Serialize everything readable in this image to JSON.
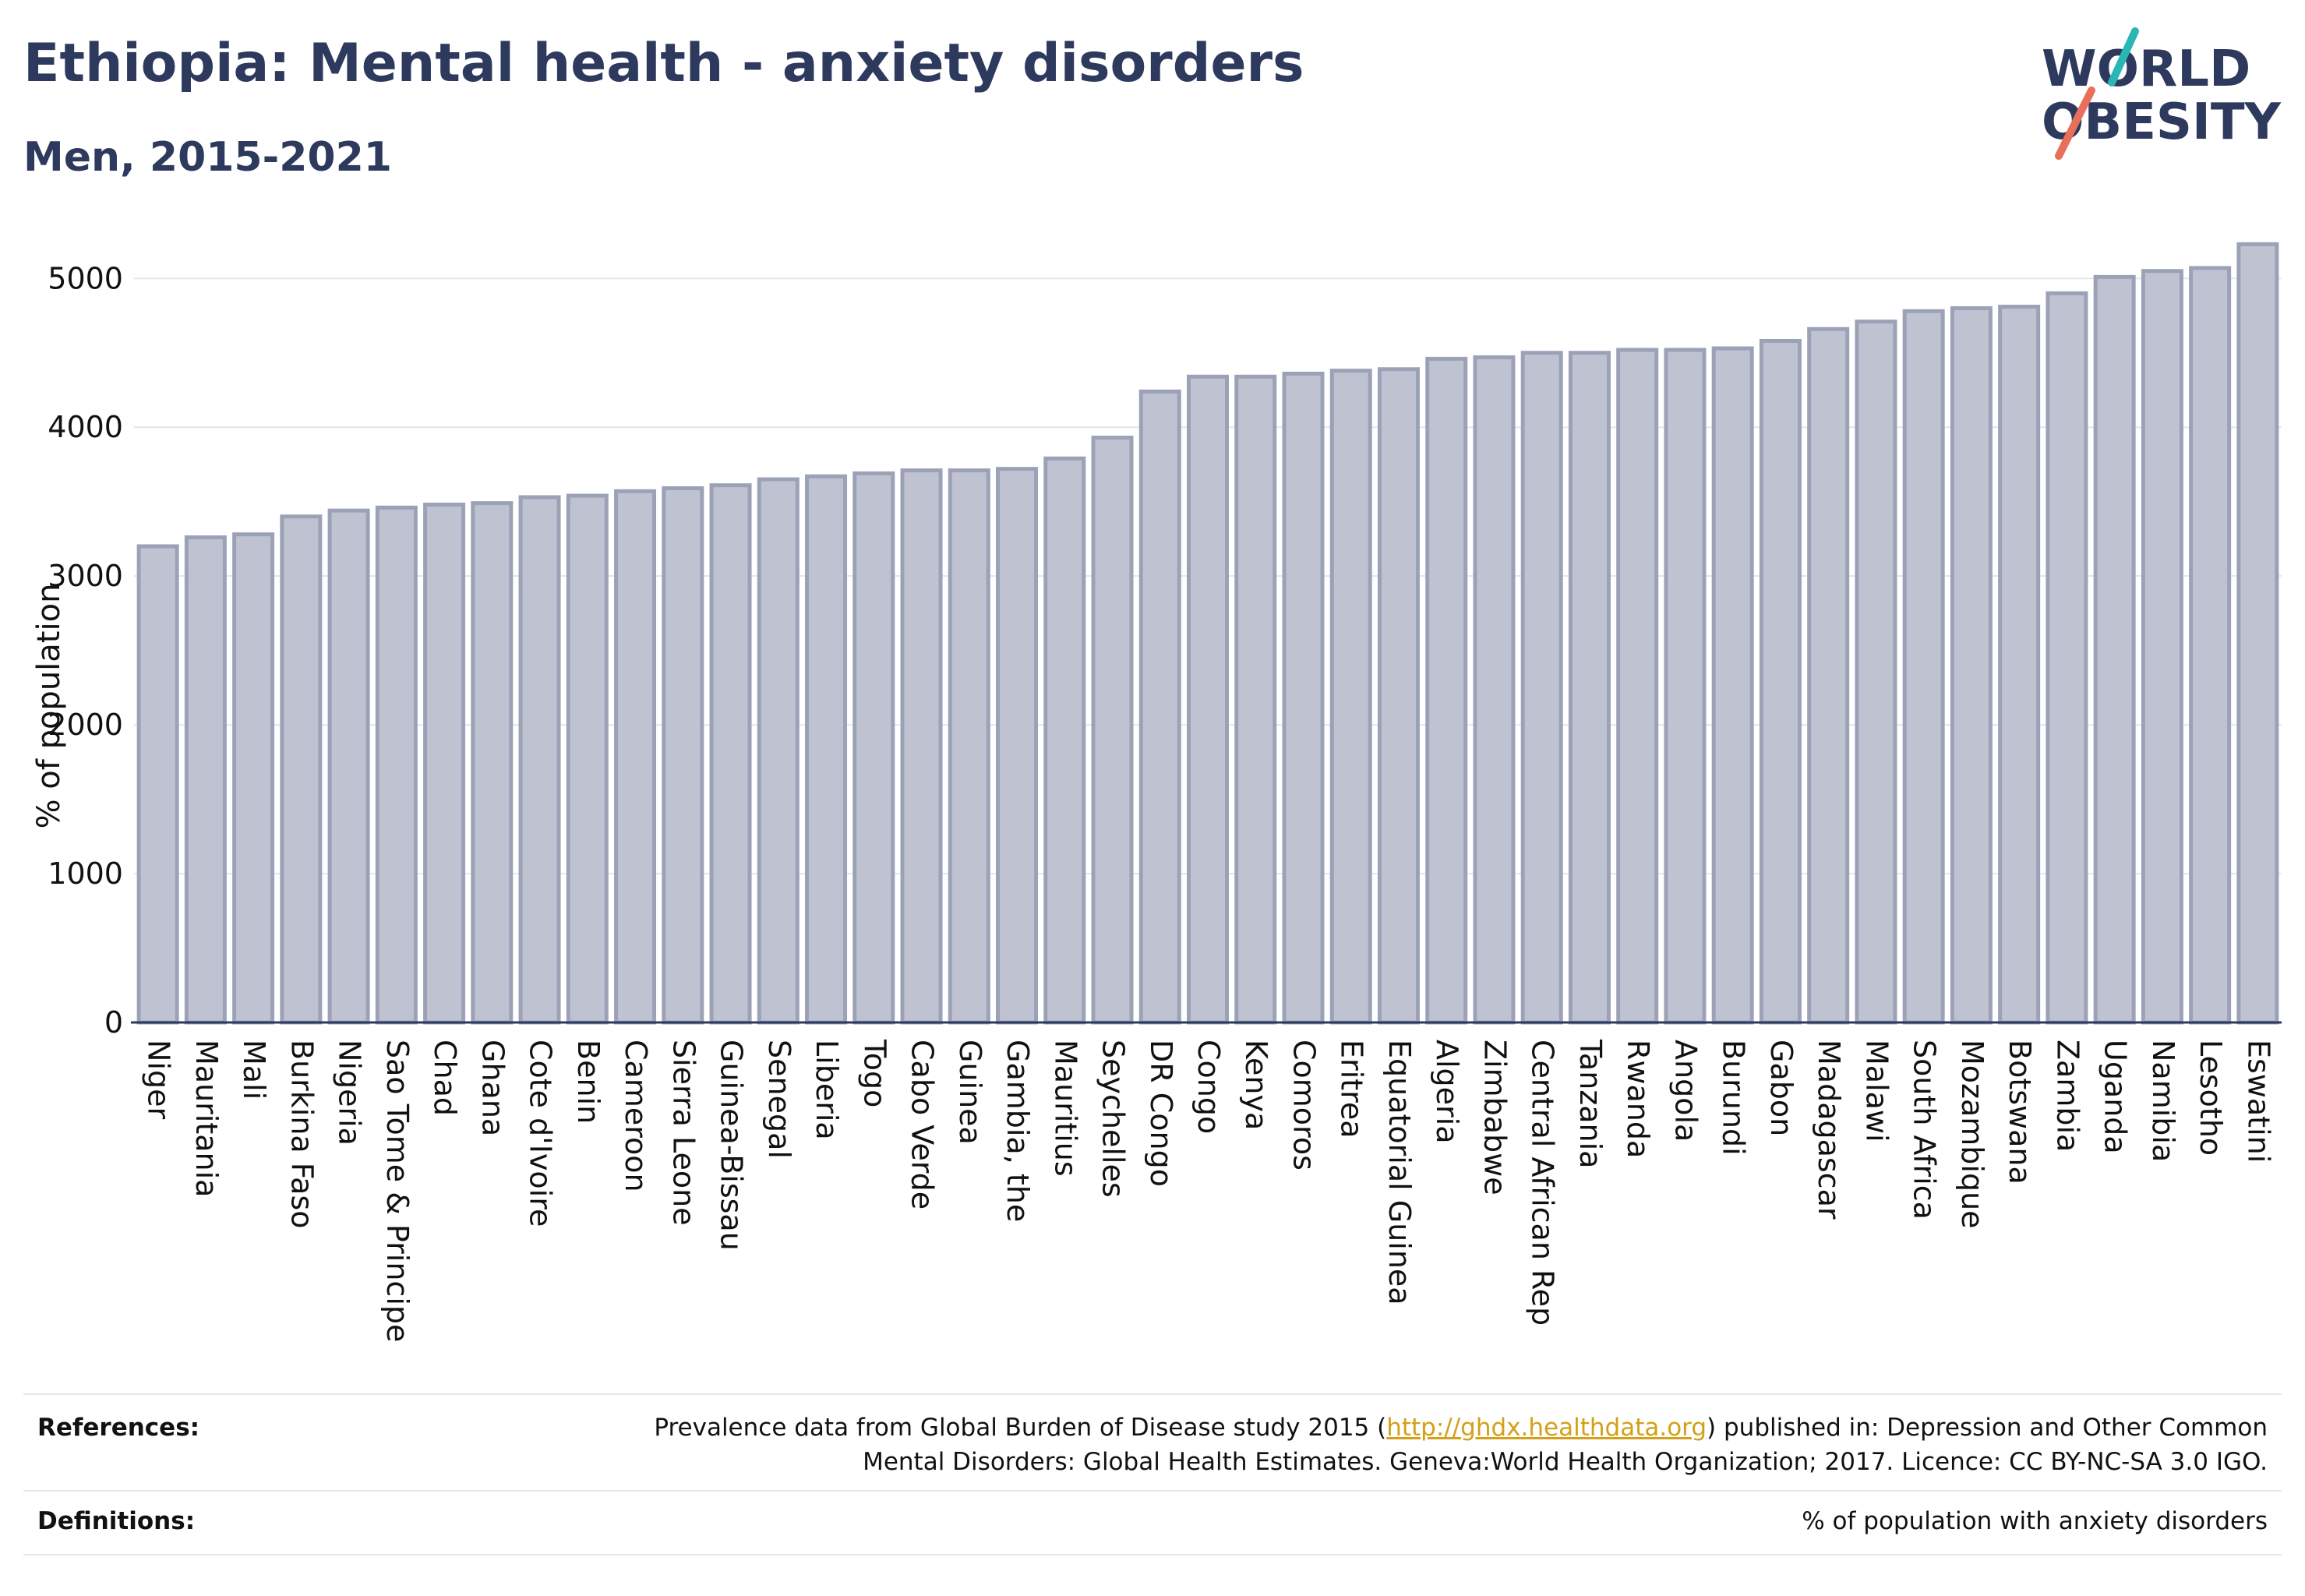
{
  "header": {
    "title": "Ethiopia: Mental health - anxiety disorders",
    "subtitle": "Men, 2015-2021"
  },
  "logo": {
    "line1": "WORLD",
    "line2": "OBESITY",
    "accent_colors": [
      "#2bb6b6",
      "#e8705a"
    ]
  },
  "chart_data": {
    "type": "bar",
    "title": "Ethiopia: Mental health - anxiety disorders",
    "subtitle": "Men, 2015-2021",
    "ylabel": "% of population",
    "xlabel": "",
    "ylim": [
      0,
      5300
    ],
    "yticks": [
      0,
      1000,
      2000,
      3000,
      4000,
      5000
    ],
    "grid": true,
    "bar_color": "#bfc3d1",
    "bar_edge_color": "#9ba1b7",
    "categories": [
      "Niger",
      "Mauritania",
      "Mali",
      "Burkina Faso",
      "Nigeria",
      "Sao Tome & Principe",
      "Chad",
      "Ghana",
      "Cote d'Ivoire",
      "Benin",
      "Cameroon",
      "Sierra Leone",
      "Guinea-Bissau",
      "Senegal",
      "Liberia",
      "Togo",
      "Cabo Verde",
      "Guinea",
      "Gambia, the",
      "Mauritius",
      "Seychelles",
      "DR Congo",
      "Congo",
      "Kenya",
      "Comoros",
      "Eritrea",
      "Equatorial Guinea",
      "Algeria",
      "Zimbabwe",
      "Central African Rep",
      "Tanzania",
      "Rwanda",
      "Angola",
      "Burundi",
      "Gabon",
      "Madagascar",
      "Malawi",
      "South Africa",
      "Mozambique",
      "Botswana",
      "Zambia",
      "Uganda",
      "Namibia",
      "Lesotho",
      "Eswatini"
    ],
    "values": [
      3200,
      3260,
      3280,
      3400,
      3440,
      3460,
      3480,
      3490,
      3530,
      3540,
      3570,
      3590,
      3610,
      3650,
      3670,
      3690,
      3710,
      3710,
      3720,
      3790,
      3930,
      4240,
      4340,
      4340,
      4360,
      4380,
      4390,
      4460,
      4470,
      4500,
      4500,
      4520,
      4520,
      4530,
      4580,
      4660,
      4710,
      4780,
      4800,
      4810,
      4900,
      5010,
      5050,
      5070,
      5230
    ]
  },
  "footer": {
    "references_label": "References:",
    "references_text_before": "Prevalence data from Global Burden of Disease study 2015 (",
    "references_link": "http://ghdx.healthdata.org",
    "references_text_after": ") published in: Depression and Other Common",
    "references_line2": "Mental Disorders: Global Health Estimates. Geneva:World Health Organization; 2017. Licence: CC BY-NC-SA 3.0 IGO.",
    "definitions_label": "Definitions:",
    "definitions_text": "% of population with anxiety disorders"
  }
}
